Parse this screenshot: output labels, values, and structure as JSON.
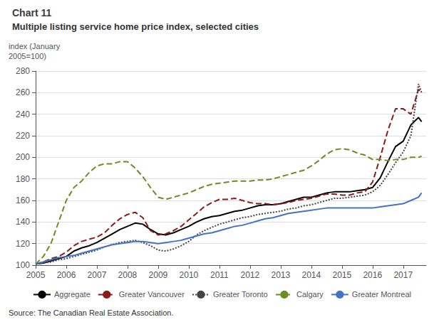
{
  "chart_data": {
    "type": "line",
    "title": "Chart 11",
    "subtitle": "Multiple listing service home price index, selected cities",
    "ylabel": "index (January\n2005=100)",
    "annotations": [
      "Source: The Canadian Real Estate Association."
    ],
    "xlim": [
      2005.0,
      2017.75
    ],
    "xticks": [
      2005,
      2006,
      2007,
      2008,
      2009,
      2010,
      2011,
      2012,
      2013,
      2014,
      2015,
      2016,
      2017
    ],
    "ylim": [
      100,
      280
    ],
    "yticks": [
      100,
      120,
      140,
      160,
      180,
      200,
      220,
      240,
      260,
      280
    ],
    "grid": true,
    "legend": "bottom",
    "x": [
      2005.0,
      2005.25,
      2005.5,
      2005.75,
      2006.0,
      2006.25,
      2006.5,
      2006.75,
      2007.0,
      2007.25,
      2007.5,
      2007.75,
      2008.0,
      2008.25,
      2008.5,
      2008.75,
      2009.0,
      2009.25,
      2009.5,
      2009.75,
      2010.0,
      2010.25,
      2010.5,
      2010.75,
      2011.0,
      2011.25,
      2011.5,
      2011.75,
      2012.0,
      2012.25,
      2012.5,
      2012.75,
      2013.0,
      2013.25,
      2013.5,
      2013.75,
      2014.0,
      2014.25,
      2014.5,
      2014.75,
      2015.0,
      2015.25,
      2015.5,
      2015.75,
      2016.0,
      2016.25,
      2016.5,
      2016.75,
      2017.0,
      2017.25,
      2017.5,
      2017.6
    ],
    "series": [
      {
        "name": "Aggregate",
        "color": "#000000",
        "line_style": "solid",
        "values": [
          101,
          102,
          104,
          106,
          108,
          113,
          116,
          118,
          121,
          125,
          129,
          133,
          136,
          139,
          138,
          133,
          129,
          128,
          130,
          133,
          136,
          140,
          143,
          145,
          146,
          148,
          150,
          151,
          153,
          155,
          156,
          156,
          157,
          159,
          161,
          163,
          163,
          165,
          167,
          168,
          168,
          168,
          169,
          170,
          172,
          181,
          196,
          210,
          215,
          230,
          237,
          233
        ]
      },
      {
        "name": "Greater Vancouver",
        "color": "#8B1A1A",
        "line_style": "dashed",
        "values": [
          101,
          103,
          106,
          108,
          112,
          118,
          122,
          124,
          126,
          130,
          137,
          143,
          147,
          149,
          144,
          132,
          128,
          129,
          132,
          136,
          142,
          148,
          154,
          158,
          161,
          161,
          162,
          160,
          158,
          157,
          157,
          156,
          157,
          158,
          160,
          161,
          162,
          164,
          166,
          166,
          165,
          165,
          167,
          168,
          177,
          200,
          225,
          245,
          245,
          240,
          263,
          260
        ]
      },
      {
        "name": "Greater Toronto",
        "color": "#444444",
        "line_style": "dotted",
        "values": [
          101,
          102,
          103,
          105,
          106,
          108,
          110,
          112,
          114,
          117,
          119,
          121,
          122,
          123,
          121,
          118,
          114,
          113,
          115,
          118,
          122,
          128,
          132,
          135,
          138,
          140,
          142,
          144,
          145,
          147,
          148,
          149,
          150,
          152,
          153,
          155,
          156,
          158,
          160,
          162,
          162,
          163,
          164,
          165,
          168,
          174,
          184,
          195,
          205,
          220,
          268,
          260
        ]
      },
      {
        "name": "Calgary",
        "color": "#6B8E23",
        "line_style": "dashed",
        "values": [
          101,
          108,
          120,
          140,
          160,
          172,
          178,
          186,
          192,
          194,
          194,
          196,
          196,
          190,
          182,
          172,
          163,
          161,
          163,
          165,
          167,
          170,
          173,
          175,
          176,
          177,
          178,
          178,
          178,
          179,
          179,
          180,
          182,
          184,
          186,
          188,
          192,
          197,
          203,
          207,
          208,
          207,
          204,
          202,
          198,
          198,
          197,
          198,
          198,
          200,
          200,
          201
        ]
      },
      {
        "name": "Greater Montreal",
        "color": "#4472C4",
        "line_style": "solid",
        "values": [
          101,
          103,
          105,
          107,
          108,
          109,
          111,
          113,
          115,
          117,
          119,
          120,
          121,
          122,
          122,
          121,
          120,
          121,
          122,
          123,
          125,
          127,
          129,
          130,
          132,
          134,
          136,
          137,
          139,
          141,
          143,
          144,
          146,
          148,
          149,
          150,
          151,
          152,
          153,
          153,
          153,
          153,
          153,
          153,
          153,
          154,
          155,
          156,
          157,
          160,
          163,
          167
        ]
      }
    ]
  }
}
